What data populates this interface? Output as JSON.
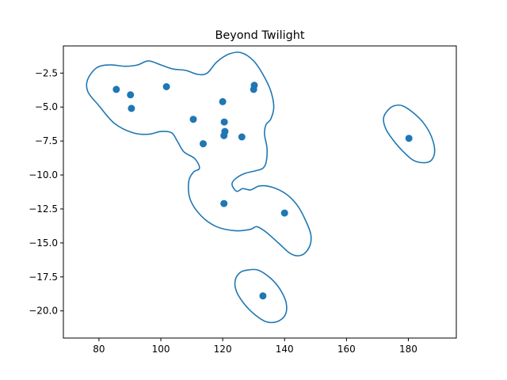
{
  "chart_data": {
    "type": "scatter",
    "title": "Beyond Twilight",
    "xlabel": "",
    "ylabel": "",
    "xlim": [
      68.5,
      195.5
    ],
    "ylim": [
      -22.0,
      -0.5
    ],
    "x_ticks": [
      80,
      100,
      120,
      140,
      160,
      180
    ],
    "y_ticks": [
      -2.5,
      -5.0,
      -7.5,
      -10.0,
      -12.5,
      -15.0,
      -17.5,
      -20.0
    ],
    "x_tick_labels": [
      "80",
      "100",
      "120",
      "140",
      "160",
      "180"
    ],
    "y_tick_labels": [
      "−2.5",
      "−5.0",
      "−7.5",
      "−10.0",
      "−12.5",
      "−15.0",
      "−17.5",
      "−20.0"
    ],
    "grid": false,
    "colors": {
      "series": "#1f77b4",
      "axis": "#000000",
      "background": "#ffffff"
    },
    "points": [
      {
        "x": 85.6,
        "y": -3.7
      },
      {
        "x": 90.2,
        "y": -4.1
      },
      {
        "x": 90.5,
        "y": -5.1
      },
      {
        "x": 101.8,
        "y": -3.5
      },
      {
        "x": 110.5,
        "y": -5.9
      },
      {
        "x": 113.7,
        "y": -7.7
      },
      {
        "x": 120.0,
        "y": -4.6
      },
      {
        "x": 120.5,
        "y": -6.1
      },
      {
        "x": 120.7,
        "y": -6.8
      },
      {
        "x": 120.4,
        "y": -7.1
      },
      {
        "x": 126.2,
        "y": -7.2
      },
      {
        "x": 130.2,
        "y": -3.4
      },
      {
        "x": 130.0,
        "y": -3.7
      },
      {
        "x": 120.4,
        "y": -12.1
      },
      {
        "x": 140.0,
        "y": -12.8
      },
      {
        "x": 133.0,
        "y": -18.9
      },
      {
        "x": 180.2,
        "y": -7.3
      }
    ],
    "contours": [
      [
        [
          76.3,
          -3.0
        ],
        [
          79.3,
          -2.1
        ],
        [
          83.5,
          -1.9
        ],
        [
          88.5,
          -2.0
        ],
        [
          92.5,
          -1.9
        ],
        [
          96.0,
          -1.6
        ],
        [
          100.0,
          -1.9
        ],
        [
          104.0,
          -2.2
        ],
        [
          108.0,
          -2.3
        ],
        [
          112.0,
          -2.6
        ],
        [
          115.0,
          -2.5
        ],
        [
          118.0,
          -1.7
        ],
        [
          122.0,
          -1.1
        ],
        [
          126.0,
          -1.0
        ],
        [
          130.0,
          -1.6
        ],
        [
          133.0,
          -2.6
        ],
        [
          135.5,
          -3.8
        ],
        [
          136.5,
          -5.0
        ],
        [
          135.5,
          -5.9
        ],
        [
          134.0,
          -6.3
        ],
        [
          133.5,
          -7.0
        ],
        [
          134.3,
          -8.0
        ],
        [
          134.1,
          -9.0
        ],
        [
          133.0,
          -9.5
        ],
        [
          130.5,
          -9.7
        ],
        [
          127.0,
          -9.9
        ],
        [
          124.0,
          -10.3
        ],
        [
          123.0,
          -10.7
        ],
        [
          124.5,
          -11.2
        ],
        [
          126.5,
          -11.0
        ],
        [
          129.0,
          -11.1
        ],
        [
          132.0,
          -10.8
        ],
        [
          136.0,
          -10.9
        ],
        [
          140.5,
          -11.4
        ],
        [
          144.0,
          -12.2
        ],
        [
          146.5,
          -13.2
        ],
        [
          148.5,
          -14.4
        ],
        [
          148.0,
          -15.3
        ],
        [
          145.5,
          -15.9
        ],
        [
          142.0,
          -15.8
        ],
        [
          138.0,
          -15.0
        ],
        [
          134.0,
          -14.2
        ],
        [
          131.0,
          -13.8
        ],
        [
          129.0,
          -14.0
        ],
        [
          124.0,
          -14.1
        ],
        [
          118.0,
          -13.8
        ],
        [
          113.0,
          -13.0
        ],
        [
          109.5,
          -11.8
        ],
        [
          109.0,
          -10.5
        ],
        [
          110.5,
          -9.8
        ],
        [
          112.5,
          -9.5
        ],
        [
          111.0,
          -8.8
        ],
        [
          107.5,
          -8.3
        ],
        [
          105.3,
          -7.5
        ],
        [
          103.5,
          -6.9
        ],
        [
          100.0,
          -6.8
        ],
        [
          96.0,
          -7.0
        ],
        [
          91.0,
          -6.9
        ],
        [
          85.0,
          -6.2
        ],
        [
          80.0,
          -4.9
        ],
        [
          76.5,
          -3.9
        ],
        [
          76.3,
          -3.0
        ]
      ],
      [
        [
          178.0,
          -4.9
        ],
        [
          181.5,
          -5.4
        ],
        [
          185.0,
          -6.2
        ],
        [
          187.5,
          -7.2
        ],
        [
          188.5,
          -8.2
        ],
        [
          187.5,
          -8.9
        ],
        [
          185.0,
          -9.1
        ],
        [
          181.5,
          -8.9
        ],
        [
          178.0,
          -8.2
        ],
        [
          175.0,
          -7.4
        ],
        [
          172.7,
          -6.6
        ],
        [
          172.0,
          -5.8
        ],
        [
          173.5,
          -5.2
        ],
        [
          175.5,
          -4.9
        ],
        [
          178.0,
          -4.9
        ]
      ],
      [
        [
          128.0,
          -17.0
        ],
        [
          131.5,
          -17.0
        ],
        [
          135.5,
          -17.6
        ],
        [
          138.5,
          -18.4
        ],
        [
          140.5,
          -19.4
        ],
        [
          140.2,
          -20.3
        ],
        [
          137.5,
          -20.8
        ],
        [
          134.0,
          -20.8
        ],
        [
          130.5,
          -20.3
        ],
        [
          127.0,
          -19.5
        ],
        [
          124.5,
          -18.6
        ],
        [
          124.0,
          -17.8
        ],
        [
          125.5,
          -17.2
        ],
        [
          128.0,
          -17.0
        ]
      ]
    ]
  }
}
